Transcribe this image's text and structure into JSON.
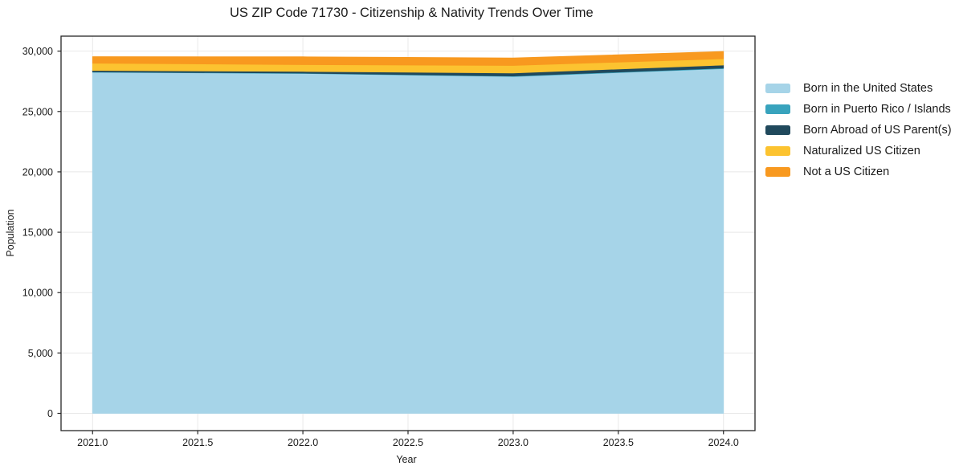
{
  "chart_data": {
    "type": "area",
    "stacked": true,
    "title": "US ZIP Code 71730 - Citizenship & Nativity Trends Over Time",
    "xlabel": "Year",
    "ylabel": "Population",
    "x": [
      2021,
      2022,
      2023,
      2024
    ],
    "xlim": [
      2020.85,
      2024.15
    ],
    "ylim": [
      -1430,
      31240
    ],
    "grid": true,
    "grid_color": "#e8e8e8",
    "axis_color": "#262626",
    "legend_position": "right-outside",
    "x_tick_values": [
      2021.0,
      2021.5,
      2022.0,
      2022.5,
      2023.0,
      2023.5,
      2024.0
    ],
    "x_tick_labels": [
      "2021.0",
      "2021.5",
      "2022.0",
      "2022.5",
      "2023.0",
      "2023.5",
      "2024.0"
    ],
    "y_tick_values": [
      0,
      5000,
      10000,
      15000,
      20000,
      25000,
      30000
    ],
    "y_tick_labels": [
      "0",
      "5,000",
      "10,000",
      "15,000",
      "20,000",
      "25,000",
      "30,000"
    ],
    "series": [
      {
        "name": "Born in the United States",
        "color": "#a6d4e8",
        "values": [
          28250,
          28150,
          27900,
          28550
        ]
      },
      {
        "name": "Born in Puerto Rico / Islands",
        "color": "#38a3bd",
        "values": [
          30,
          30,
          40,
          50
        ]
      },
      {
        "name": "Born Abroad of US Parent(s)",
        "color": "#20495c",
        "values": [
          120,
          140,
          250,
          250
        ]
      },
      {
        "name": "Naturalized US Citizen",
        "color": "#fcc330",
        "values": [
          600,
          560,
          620,
          520
        ]
      },
      {
        "name": "Not a US Citizen",
        "color": "#f8991f",
        "values": [
          540,
          650,
          620,
          600
        ]
      }
    ]
  }
}
